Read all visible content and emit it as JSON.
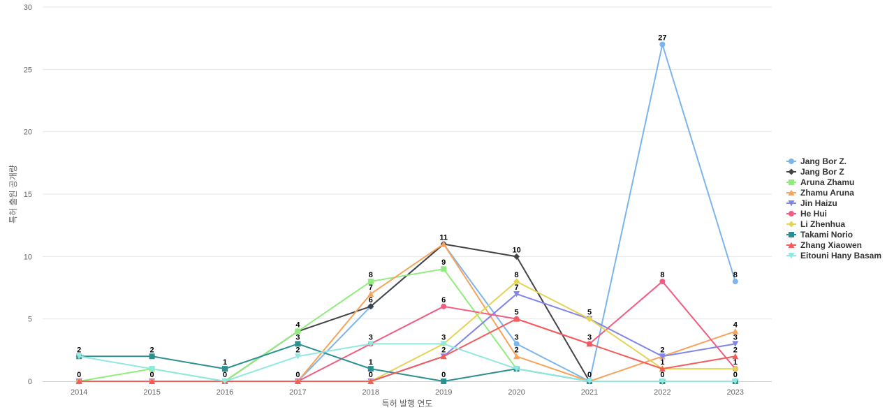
{
  "chart_data": {
    "type": "line",
    "x": [
      "2014",
      "2015",
      "2016",
      "2017",
      "2018",
      "2019",
      "2020",
      "2021",
      "2022",
      "2023"
    ],
    "xlabel": "특허 발행 연도",
    "ylabel": "특허 출원 공개량",
    "ylim": [
      0,
      30
    ],
    "yticks": [
      0,
      5,
      10,
      15,
      20,
      25,
      30
    ],
    "grid": true,
    "legend_position": "right",
    "series": [
      {
        "name": "Jang Bor Z.",
        "color": "#7cb5ec",
        "marker": "circle",
        "values": [
          0,
          0,
          0,
          0,
          6,
          11,
          3,
          0,
          27,
          8
        ],
        "labeled": [
          0,
          0,
          0,
          0,
          0,
          0,
          1,
          0,
          1,
          1
        ]
      },
      {
        "name": "Jang Bor Z",
        "color": "#434348",
        "marker": "diamond",
        "values": [
          0,
          0,
          0,
          4,
          6,
          11,
          10,
          0,
          0,
          0
        ],
        "labeled": [
          1,
          0,
          0,
          0,
          1,
          1,
          1,
          0,
          0,
          0
        ]
      },
      {
        "name": "Aruna Zhamu",
        "color": "#90ed7d",
        "marker": "square",
        "values": [
          0,
          1,
          0,
          4,
          8,
          9,
          1,
          0,
          0,
          0
        ],
        "labeled": [
          0,
          0,
          0,
          1,
          1,
          1,
          0,
          0,
          0,
          0
        ]
      },
      {
        "name": "Zhamu Aruna",
        "color": "#f7a35c",
        "marker": "triangle",
        "values": [
          0,
          0,
          0,
          0,
          7,
          11,
          2,
          0,
          2,
          4
        ],
        "labeled": [
          0,
          0,
          0,
          0,
          1,
          0,
          1,
          0,
          1,
          1
        ]
      },
      {
        "name": "Jin Haizu",
        "color": "#8085e9",
        "marker": "triangle-down",
        "values": [
          0,
          0,
          0,
          0,
          0,
          2,
          7,
          5,
          2,
          3
        ],
        "labeled": [
          0,
          0,
          0,
          0,
          0,
          0,
          1,
          0,
          0,
          1
        ]
      },
      {
        "name": "He Hui",
        "color": "#f15c80",
        "marker": "circle",
        "values": [
          0,
          0,
          0,
          0,
          3,
          6,
          5,
          3,
          8,
          1
        ],
        "labeled": [
          0,
          0,
          0,
          0,
          0,
          1,
          0,
          0,
          1,
          0
        ]
      },
      {
        "name": "Li Zhenhua",
        "color": "#e4d354",
        "marker": "diamond",
        "values": [
          0,
          0,
          0,
          0,
          0,
          3,
          8,
          5,
          1,
          1
        ],
        "labeled": [
          0,
          0,
          0,
          0,
          0,
          0,
          1,
          1,
          1,
          1
        ]
      },
      {
        "name": "Takami Norio",
        "color": "#2b908f",
        "marker": "square",
        "values": [
          2,
          2,
          1,
          3,
          1,
          0,
          1,
          0,
          0,
          0
        ],
        "labeled": [
          0,
          1,
          1,
          1,
          1,
          1,
          0,
          1,
          1,
          0
        ]
      },
      {
        "name": "Zhang Xiaowen",
        "color": "#f45b5b",
        "marker": "triangle",
        "values": [
          0,
          0,
          0,
          0,
          0,
          2,
          5,
          3,
          1,
          2
        ],
        "labeled": [
          1,
          1,
          1,
          1,
          1,
          1,
          1,
          1,
          0,
          1
        ]
      },
      {
        "name": "Eitouni Hany Basam",
        "color": "#91e8e1",
        "marker": "triangle-down",
        "values": [
          2,
          1,
          0,
          2,
          3,
          3,
          1,
          0,
          0,
          0
        ],
        "labeled": [
          1,
          0,
          0,
          1,
          1,
          1,
          0,
          0,
          0,
          1
        ]
      }
    ]
  }
}
